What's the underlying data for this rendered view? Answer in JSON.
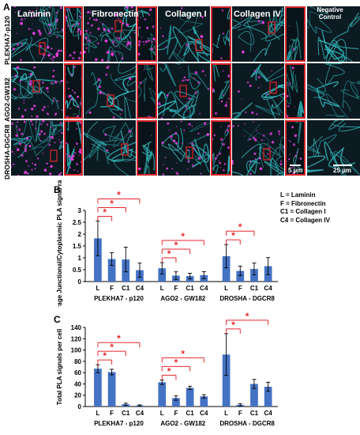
{
  "panel_a": {
    "label": "A",
    "columns": [
      "Laminin",
      "Fibronectin",
      "Collagen I",
      "Collagen IV"
    ],
    "negative_control": [
      "Negative",
      "Control"
    ],
    "rows": [
      "PLEKHA7-p120",
      "AGO2-GW182",
      "DROSHA-DGCR8"
    ],
    "scale_small": "5 µm",
    "scale_large": "25 µm",
    "colors": {
      "membrane": "#35c6c9",
      "pla_signal": "#e83fe0",
      "roi_box": "#d6232b"
    }
  },
  "panel_b": {
    "label": "B"
  },
  "panel_c": {
    "label": "C"
  },
  "legend": [
    "L  = Laminin",
    "F  = Fibronectin",
    "C1 = Collagen I",
    "C4 = Collagen IV"
  ],
  "chart_data": [
    {
      "type": "bar",
      "ylabel": "Average Junctional/Cytoplasmic PLA signal ratio",
      "ylim": [
        0,
        3
      ],
      "yticks": [
        0,
        0.5,
        1,
        1.5,
        2,
        2.5,
        3
      ],
      "categories": [
        "L",
        "F",
        "C1",
        "C4"
      ],
      "groups": [
        {
          "name": "PLEKHA7 - p120",
          "values": [
            1.82,
            0.95,
            0.93,
            0.48
          ],
          "errors": [
            0.73,
            0.27,
            0.52,
            0.3
          ],
          "significance": [
            [
              "L",
              "F"
            ],
            [
              "L",
              "C1"
            ],
            [
              "L",
              "C4"
            ]
          ]
        },
        {
          "name": "AGO2 - GW182",
          "values": [
            0.56,
            0.25,
            0.23,
            0.27
          ],
          "errors": [
            0.24,
            0.16,
            0.12,
            0.15
          ],
          "significance": [
            [
              "L",
              "F"
            ],
            [
              "L",
              "C1"
            ],
            [
              "L",
              "C4"
            ]
          ]
        },
        {
          "name": "DROSHA - DGCR8",
          "values": [
            1.07,
            0.45,
            0.53,
            0.65
          ],
          "errors": [
            0.49,
            0.2,
            0.25,
            0.36
          ],
          "significance": [
            [
              "L",
              "F"
            ],
            [
              "L",
              "C1"
            ]
          ]
        }
      ],
      "bar_color": "#4472c4",
      "significance_marker": "*",
      "significance_color": "#e8262c"
    },
    {
      "type": "bar",
      "ylabel": "Total PLA signals per cell",
      "ylim": [
        0,
        140
      ],
      "yticks": [
        0,
        20,
        40,
        60,
        80,
        100,
        120,
        140
      ],
      "categories": [
        "L",
        "F",
        "C1",
        "C4"
      ],
      "groups": [
        {
          "name": "PLEKHA7 - p120",
          "values": [
            67,
            61,
            4,
            2
          ],
          "errors": [
            7,
            5,
            2,
            1
          ],
          "significance": [
            [
              "L",
              "F"
            ],
            [
              "L",
              "C1"
            ],
            [
              "L",
              "C4"
            ]
          ]
        },
        {
          "name": "AGO2 - GW182",
          "values": [
            43,
            15,
            33,
            18
          ],
          "errors": [
            4,
            4,
            3,
            3
          ],
          "significance": [
            [
              "L",
              "F"
            ],
            [
              "L",
              "C1"
            ],
            [
              "L",
              "C4"
            ]
          ]
        },
        {
          "name": "DROSHA - DGCR8",
          "values": [
            92,
            3,
            40,
            35
          ],
          "errors": [
            37,
            2,
            8,
            8
          ],
          "significance": [
            [
              "L",
              "F"
            ],
            [
              "L",
              "C4"
            ]
          ]
        }
      ],
      "bar_color": "#4472c4",
      "significance_marker": "*",
      "significance_color": "#e8262c"
    }
  ]
}
